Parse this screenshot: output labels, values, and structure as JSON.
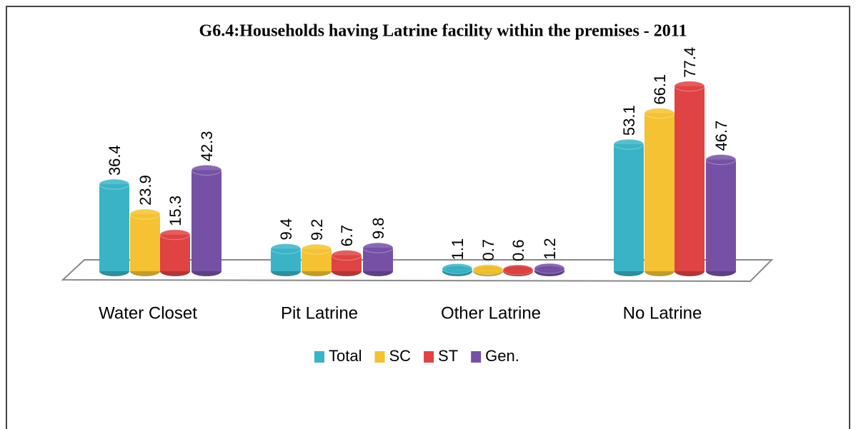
{
  "chart_data": {
    "type": "bar3d",
    "title": "G6.4:Households having Latrine facility within the premises - 2011",
    "categories": [
      "Water Closet",
      "Pit Latrine",
      "Other Latrine",
      "No Latrine"
    ],
    "series": [
      {
        "name": "Total",
        "color": "#3ab3c6",
        "values": [
          36.4,
          9.4,
          1.1,
          53.1
        ]
      },
      {
        "name": "SC",
        "color": "#f4c233",
        "values": [
          23.9,
          9.2,
          0.7,
          66.1
        ]
      },
      {
        "name": "ST",
        "color": "#df4343",
        "values": [
          15.3,
          6.7,
          0.6,
          77.4
        ]
      },
      {
        "name": "Gen.",
        "color": "#7550a5",
        "values": [
          42.3,
          9.8,
          1.2,
          46.7
        ]
      }
    ],
    "legend": "bottom"
  }
}
